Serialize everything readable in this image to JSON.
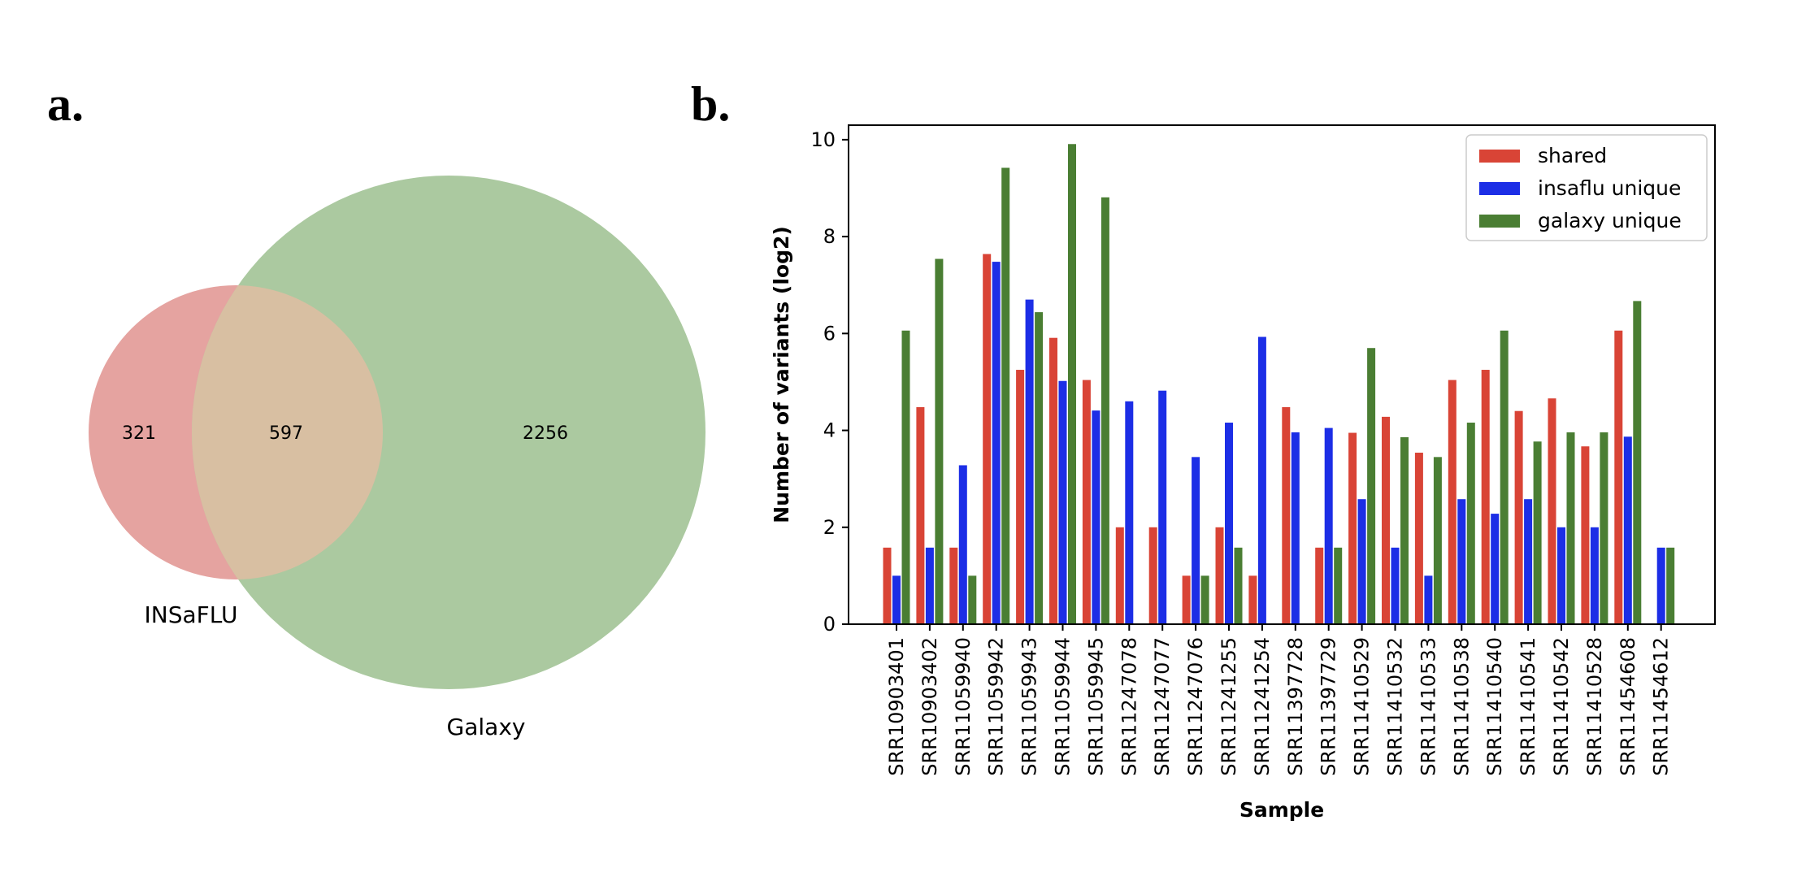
{
  "panels": {
    "a": {
      "label": "a."
    },
    "b": {
      "label": "b."
    }
  },
  "venn": {
    "left_set": {
      "name": "INSaFLU",
      "only_count": "321",
      "color": "#e5a3a0"
    },
    "right_set": {
      "name": "Galaxy",
      "only_count": "2256",
      "color": "#abc9a0"
    },
    "intersection": {
      "count": "597",
      "color": "#d8bfa2"
    }
  },
  "chart_data": {
    "type": "bar",
    "xlabel": "Sample",
    "ylabel": "Number of variants (log2)",
    "ylim": [
      0,
      10.3
    ],
    "yticks": [
      0,
      2,
      4,
      6,
      8,
      10
    ],
    "grid": false,
    "legend_position": "top-right",
    "categories": [
      "SRR10903401",
      "SRR10903402",
      "SRR11059940",
      "SRR11059942",
      "SRR11059943",
      "SRR11059944",
      "SRR11059945",
      "SRR11247078",
      "SRR11247077",
      "SRR11247076",
      "SRR11241255",
      "SRR11241254",
      "SRR11397728",
      "SRR11397729",
      "SRR11410529",
      "SRR11410532",
      "SRR11410533",
      "SRR11410538",
      "SRR11410540",
      "SRR11410541",
      "SRR11410542",
      "SRR11410528",
      "SRR11454608",
      "SRR11454612"
    ],
    "series": [
      {
        "name": "shared",
        "color": "#d94436",
        "values": [
          1.58,
          4.48,
          1.58,
          7.64,
          5.25,
          5.91,
          5.04,
          2.0,
          2.0,
          1.0,
          2.0,
          1.0,
          4.48,
          1.58,
          3.95,
          4.28,
          3.54,
          5.04,
          5.25,
          4.4,
          4.66,
          3.67,
          6.06,
          0
        ]
      },
      {
        "name": "insaflu unique",
        "color": "#1c2ee6",
        "values": [
          1.0,
          1.58,
          3.28,
          7.48,
          6.7,
          5.02,
          4.41,
          4.6,
          4.82,
          3.45,
          4.16,
          5.93,
          3.96,
          4.05,
          2.58,
          1.58,
          1.0,
          2.58,
          2.28,
          2.58,
          2.0,
          2.0,
          3.87,
          1.58
        ]
      },
      {
        "name": "galaxy unique",
        "color": "#4a7e33",
        "values": [
          6.06,
          7.54,
          1.0,
          9.42,
          6.44,
          9.91,
          8.81,
          0,
          0,
          1.0,
          1.58,
          0,
          0,
          1.58,
          5.7,
          3.86,
          3.45,
          4.16,
          6.06,
          3.77,
          3.96,
          3.96,
          6.67,
          1.58
        ]
      }
    ]
  }
}
